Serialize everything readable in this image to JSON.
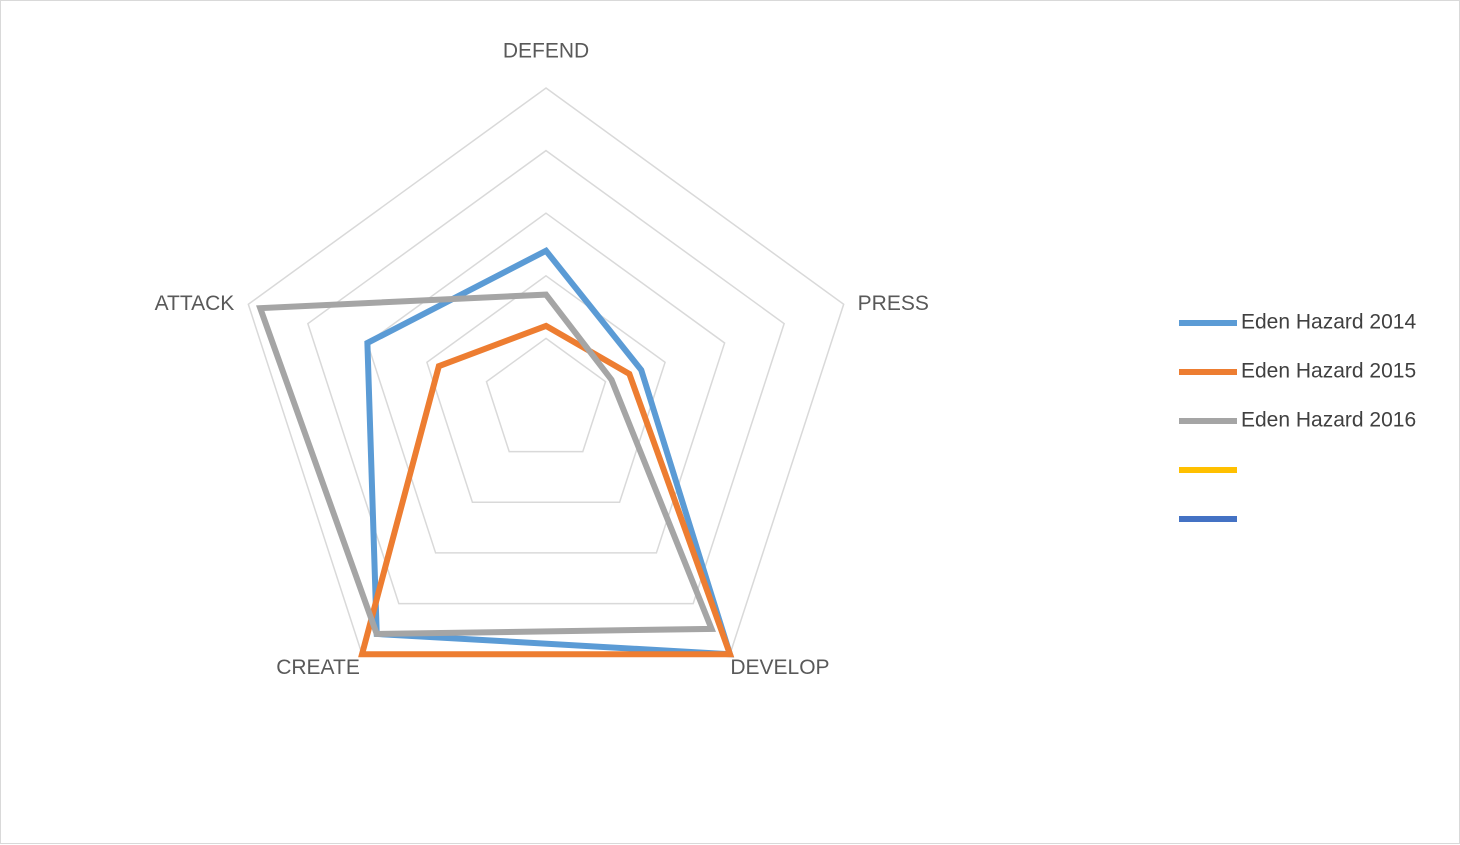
{
  "chart_data": {
    "type": "radar",
    "axes": [
      "DEFEND",
      "PRESS",
      "DEVELOP",
      "CREATE",
      "ATTACK"
    ],
    "range": [
      0,
      5
    ],
    "grid_levels": 5,
    "grid": true,
    "legend_position": "right",
    "series": [
      {
        "name": "Eden Hazard 2014",
        "color": "#5b9bd5",
        "values": [
          2.4,
          1.6,
          5.0,
          4.6,
          3.0
        ]
      },
      {
        "name": "Eden Hazard 2015",
        "color": "#ed7d31",
        "values": [
          1.2,
          1.4,
          5.0,
          5.0,
          1.8
        ]
      },
      {
        "name": "Eden Hazard 2016",
        "color": "#a5a5a5",
        "values": [
          1.7,
          1.1,
          4.5,
          4.6,
          4.8
        ]
      },
      {
        "name": "",
        "color": "#ffc000",
        "values": []
      },
      {
        "name": "",
        "color": "#4472c4",
        "values": []
      }
    ]
  }
}
